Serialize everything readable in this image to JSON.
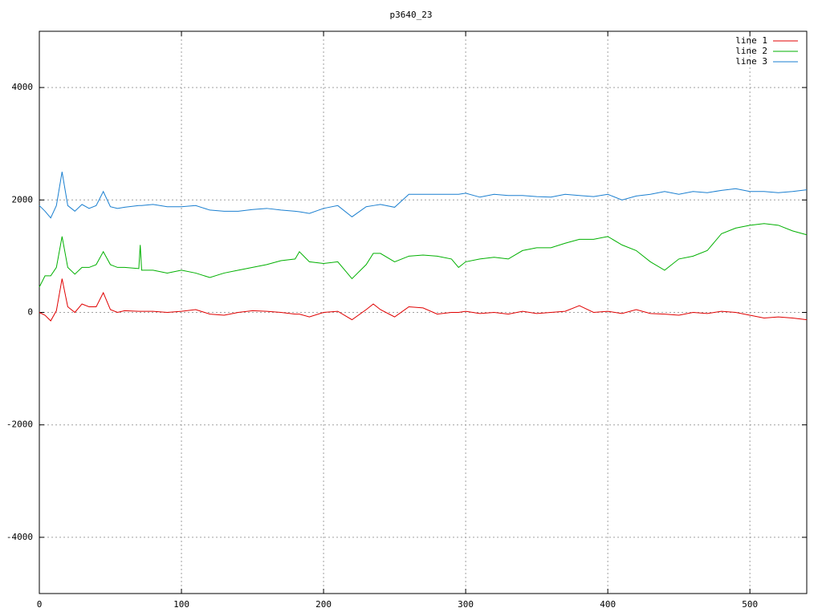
{
  "chart_data": {
    "type": "line",
    "title": "p3640_23",
    "x": [
      0,
      4,
      8,
      12,
      16,
      20,
      25,
      30,
      35,
      40,
      45,
      50,
      55,
      60,
      70,
      71,
      72,
      80,
      90,
      100,
      110,
      120,
      130,
      140,
      150,
      160,
      170,
      180,
      183,
      190,
      200,
      210,
      220,
      230,
      235,
      240,
      250,
      260,
      270,
      280,
      290,
      295,
      300,
      310,
      320,
      330,
      340,
      350,
      360,
      370,
      380,
      390,
      400,
      410,
      420,
      430,
      440,
      450,
      460,
      470,
      480,
      490,
      500,
      510,
      520,
      530,
      540
    ],
    "series": [
      {
        "name": "line 1",
        "color": "#e00000",
        "values": [
          0,
          -50,
          -150,
          30,
          600,
          100,
          0,
          150,
          100,
          100,
          350,
          50,
          0,
          30,
          20,
          20,
          20,
          20,
          0,
          20,
          50,
          -30,
          -50,
          0,
          30,
          20,
          0,
          -30,
          -30,
          -80,
          0,
          20,
          -130,
          50,
          150,
          50,
          -80,
          100,
          80,
          -30,
          0,
          0,
          20,
          -20,
          0,
          -30,
          20,
          -20,
          0,
          20,
          120,
          0,
          20,
          -20,
          50,
          -20,
          -30,
          -50,
          0,
          -20,
          20,
          0,
          -50,
          -100,
          -80,
          -100,
          -130
        ]
      },
      {
        "name": "line 2",
        "color": "#00b000",
        "values": [
          450,
          650,
          650,
          800,
          1350,
          800,
          680,
          800,
          800,
          850,
          1080,
          850,
          800,
          800,
          780,
          1200,
          750,
          750,
          700,
          750,
          700,
          620,
          700,
          750,
          800,
          850,
          920,
          950,
          1080,
          900,
          870,
          900,
          600,
          850,
          1050,
          1050,
          900,
          1000,
          1020,
          1000,
          950,
          800,
          900,
          950,
          980,
          950,
          1100,
          1150,
          1150,
          1230,
          1300,
          1300,
          1350,
          1200,
          1100,
          900,
          750,
          950,
          1000,
          1100,
          1400,
          1500,
          1550,
          1580,
          1550,
          1450,
          1380
        ]
      },
      {
        "name": "line 3",
        "color": "#1a7fd0",
        "values": [
          1900,
          1800,
          1680,
          1900,
          2500,
          1900,
          1800,
          1920,
          1850,
          1900,
          2150,
          1880,
          1850,
          1870,
          1900,
          1900,
          1900,
          1920,
          1880,
          1880,
          1900,
          1820,
          1800,
          1800,
          1830,
          1850,
          1820,
          1800,
          1790,
          1760,
          1850,
          1900,
          1700,
          1880,
          1900,
          1920,
          1870,
          2100,
          2100,
          2100,
          2100,
          2100,
          2120,
          2050,
          2100,
          2080,
          2080,
          2060,
          2050,
          2100,
          2080,
          2060,
          2100,
          2000,
          2070,
          2100,
          2150,
          2100,
          2150,
          2130,
          2170,
          2200,
          2150,
          2150,
          2130,
          2150,
          2180
        ]
      }
    ],
    "xlim": [
      0,
      540
    ],
    "ylim": [
      -5000,
      5000
    ],
    "xticks": [
      0,
      100,
      200,
      300,
      400,
      500
    ],
    "yticks": [
      -4000,
      -2000,
      0,
      2000,
      4000
    ],
    "grid": true,
    "legend": "top-right"
  }
}
